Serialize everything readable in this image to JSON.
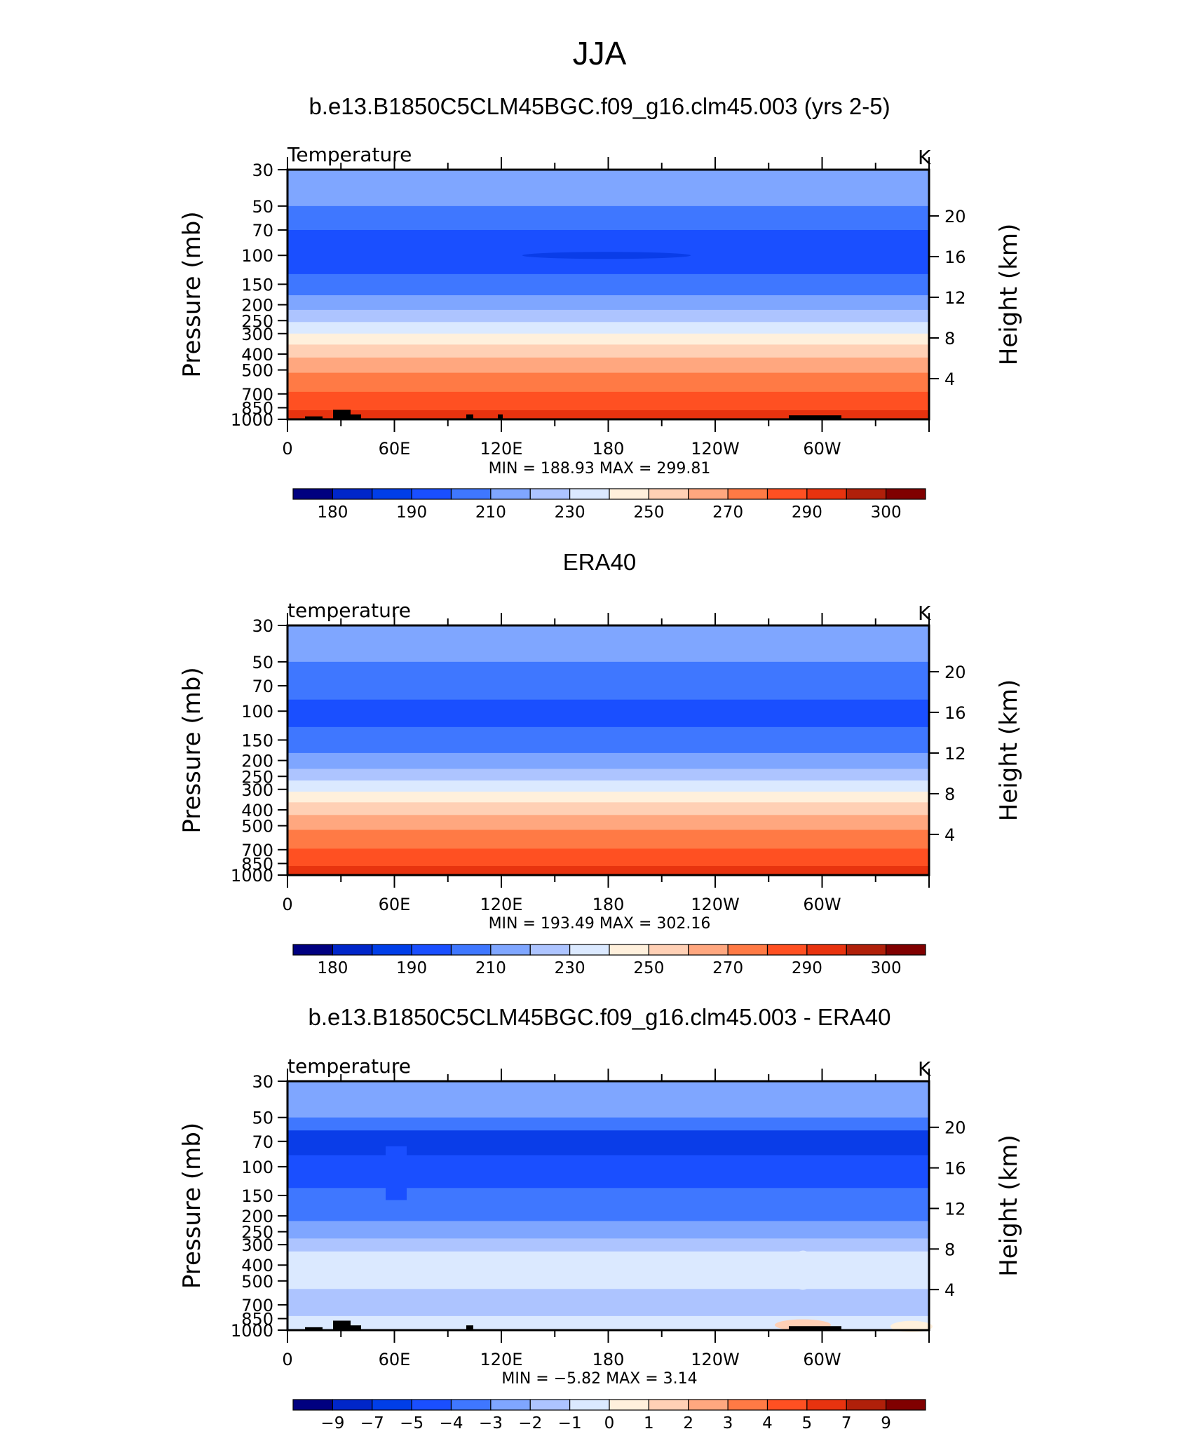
{
  "main_title": "JJA",
  "chart_data": [
    {
      "type": "contour",
      "title": "b.e13.B1850C5CLM45BGC.f09_g16.clm45.003 (yrs 2-5)",
      "left_label": "Temperature",
      "units": "K",
      "ylabel": "Pressure (mb)",
      "ylabel_right": "Height (km)",
      "xticks": [
        "0",
        "60E",
        "120E",
        "180",
        "120W",
        "60W"
      ],
      "pressure_ticks": [
        "30",
        "50",
        "70",
        "100",
        "150",
        "200",
        "250",
        "300",
        "400",
        "500",
        "700",
        "850",
        "1000"
      ],
      "height_ticks": [
        "20",
        "16",
        "12",
        "8",
        "4"
      ],
      "min_label": "MIN",
      "max_label": "MAX",
      "min": "188.93",
      "max": "299.81",
      "colorbar_labels": [
        "180",
        "190",
        "210",
        "230",
        "250",
        "270",
        "290",
        "300"
      ],
      "bands": [
        {
          "top": 30,
          "bottom": 50,
          "color": "#7fa6ff"
        },
        {
          "top": 50,
          "bottom": 70,
          "color": "#3f77ff"
        },
        {
          "top": 70,
          "bottom": 130,
          "color": "#1a4fff"
        },
        {
          "top": 130,
          "bottom": 175,
          "color": "#3f77ff"
        },
        {
          "top": 175,
          "bottom": 215,
          "color": "#7fa6ff"
        },
        {
          "top": 215,
          "bottom": 255,
          "color": "#adc4ff"
        },
        {
          "top": 255,
          "bottom": 300,
          "color": "#dbe9ff"
        },
        {
          "top": 300,
          "bottom": 350,
          "color": "#fff0dc"
        },
        {
          "top": 350,
          "bottom": 420,
          "color": "#ffd0b5"
        },
        {
          "top": 420,
          "bottom": 520,
          "color": "#ffa77f"
        },
        {
          "top": 520,
          "bottom": 680,
          "color": "#ff7a45"
        },
        {
          "top": 680,
          "bottom": 880,
          "color": "#ff5022"
        },
        {
          "top": 880,
          "bottom": 1000,
          "color": "#e8330f"
        }
      ]
    },
    {
      "type": "contour",
      "title": "ERA40",
      "left_label": "temperature",
      "units": "K",
      "ylabel": "Pressure (mb)",
      "ylabel_right": "Height (km)",
      "xticks": [
        "0",
        "60E",
        "120E",
        "180",
        "120W",
        "60W"
      ],
      "pressure_ticks": [
        "30",
        "50",
        "70",
        "100",
        "150",
        "200",
        "250",
        "300",
        "400",
        "500",
        "700",
        "850",
        "1000"
      ],
      "height_ticks": [
        "20",
        "16",
        "12",
        "8",
        "4"
      ],
      "min_label": "MIN",
      "max_label": "MAX",
      "min": "193.49",
      "max": "302.16",
      "colorbar_labels": [
        "180",
        "190",
        "210",
        "230",
        "250",
        "270",
        "290",
        "300"
      ],
      "bands": [
        {
          "top": 30,
          "bottom": 50,
          "color": "#7fa6ff"
        },
        {
          "top": 50,
          "bottom": 85,
          "color": "#3f77ff"
        },
        {
          "top": 85,
          "bottom": 125,
          "color": "#1a4fff"
        },
        {
          "top": 125,
          "bottom": 180,
          "color": "#3f77ff"
        },
        {
          "top": 180,
          "bottom": 225,
          "color": "#7fa6ff"
        },
        {
          "top": 225,
          "bottom": 265,
          "color": "#adc4ff"
        },
        {
          "top": 265,
          "bottom": 310,
          "color": "#dbe9ff"
        },
        {
          "top": 310,
          "bottom": 360,
          "color": "#fff0dc"
        },
        {
          "top": 360,
          "bottom": 430,
          "color": "#ffd0b5"
        },
        {
          "top": 430,
          "bottom": 530,
          "color": "#ffa77f"
        },
        {
          "top": 530,
          "bottom": 690,
          "color": "#ff7a45"
        },
        {
          "top": 690,
          "bottom": 880,
          "color": "#ff5022"
        },
        {
          "top": 880,
          "bottom": 1000,
          "color": "#e8330f"
        }
      ]
    },
    {
      "type": "contour",
      "title": "b.e13.B1850C5CLM45BGC.f09_g16.clm45.003 - ERA40",
      "left_label": "temperature",
      "units": "K",
      "ylabel": "Pressure (mb)",
      "ylabel_right": "Height (km)",
      "xticks": [
        "0",
        "60E",
        "120E",
        "180",
        "120W",
        "60W"
      ],
      "pressure_ticks": [
        "30",
        "50",
        "70",
        "100",
        "150",
        "200",
        "250",
        "300",
        "400",
        "500",
        "700",
        "850",
        "1000"
      ],
      "height_ticks": [
        "20",
        "16",
        "12",
        "8",
        "4"
      ],
      "min_label": "MIN",
      "max_label": "MAX",
      "min": "−5.82",
      "max": "3.14",
      "colorbar_labels": [
        "−9",
        "−7",
        "−5",
        "−4",
        "−3",
        "−2",
        "−1",
        "0",
        "1",
        "2",
        "3",
        "4",
        "5",
        "7",
        "9"
      ],
      "bands": [
        {
          "top": 30,
          "bottom": 50,
          "color": "#7fa6ff"
        },
        {
          "top": 50,
          "bottom": 60,
          "color": "#3f77ff"
        },
        {
          "top": 60,
          "bottom": 85,
          "color": "#0a3de8"
        },
        {
          "top": 85,
          "bottom": 135,
          "color": "#1a4fff"
        },
        {
          "top": 135,
          "bottom": 215,
          "color": "#3f77ff"
        },
        {
          "top": 215,
          "bottom": 275,
          "color": "#7fa6ff"
        },
        {
          "top": 275,
          "bottom": 330,
          "color": "#adc4ff"
        },
        {
          "top": 330,
          "bottom": 560,
          "color": "#dbe9ff"
        },
        {
          "top": 560,
          "bottom": 820,
          "color": "#adc4ff"
        },
        {
          "top": 820,
          "bottom": 1000,
          "color": "#dbe9ff"
        }
      ]
    }
  ],
  "colorbar_palette": [
    "#000080",
    "#0026c9",
    "#003ee8",
    "#1a4fff",
    "#3f77ff",
    "#7fa6ff",
    "#adc4ff",
    "#dbe9ff",
    "#fff0dc",
    "#ffd0b5",
    "#ffa77f",
    "#ff7a45",
    "#ff5022",
    "#e8330f",
    "#b0200a",
    "#800000"
  ]
}
